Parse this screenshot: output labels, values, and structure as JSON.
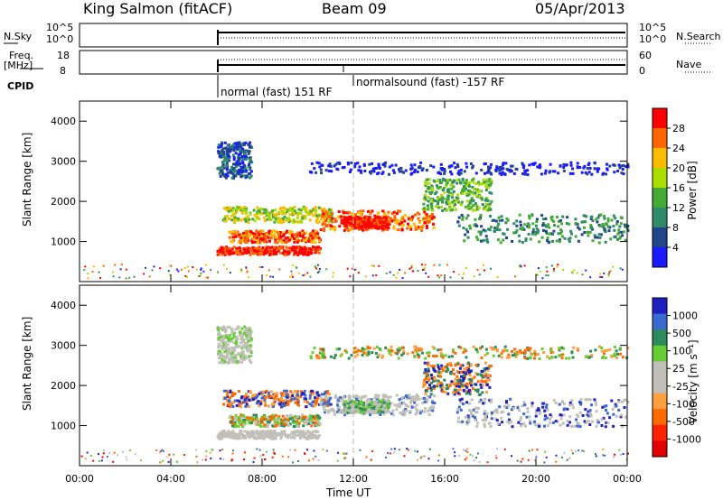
{
  "header": {
    "station": "King Salmon (fitACF)",
    "beam": "Beam 09",
    "date": "05/Apr/2013"
  },
  "small_panels": {
    "nsky_label": "N.Sky",
    "nsky_ticks": [
      "10^5",
      "10^0"
    ],
    "nsearch_label": "N.Search",
    "nsearch_ticks": [
      "10^5",
      "10^0"
    ],
    "freq_label_1": "Freq.",
    "freq_label_2": "[MHz]",
    "freq_ticks": [
      "18",
      "8"
    ],
    "nave_label": "Nave",
    "nave_ticks": [
      "60",
      "0"
    ],
    "cpid_label": "CPID",
    "cpid_segments": [
      "normal (fast) 151 RF",
      "normalsound (fast) -157 RF"
    ]
  },
  "chart_data": [
    {
      "type": "heatmap",
      "title": "",
      "xlabel": "Time UT",
      "ylabel": "Slant Range [km]",
      "x_ticks": [
        "00:00",
        "04:00",
        "08:00",
        "12:00",
        "16:00",
        "20:00",
        "00:00"
      ],
      "y_ticks": [
        1000,
        2000,
        3000,
        4000
      ],
      "ylim": [
        0,
        4500
      ],
      "xlim_hours": [
        0,
        24
      ],
      "colorbar_label": "Power [dB]",
      "colorbar_ticks": [
        "28",
        "24",
        "20",
        "16",
        "12",
        "8",
        "4"
      ],
      "colors": [
        "#ff0000",
        "#ff6600",
        "#ffbb00",
        "#aadd00",
        "#44aa33",
        "#2f8a6a",
        "#224488",
        "#1a1aff"
      ]
    },
    {
      "type": "heatmap",
      "title": "",
      "xlabel": "Time UT",
      "ylabel": "Slant Range [km]",
      "x_ticks": [
        "00:00",
        "04:00",
        "08:00",
        "12:00",
        "16:00",
        "20:00",
        "00:00"
      ],
      "y_ticks": [
        1000,
        2000,
        3000,
        4000
      ],
      "ylim": [
        0,
        4500
      ],
      "xlim_hours": [
        0,
        24
      ],
      "colorbar_label": "Velocity [m s⁻¹]",
      "colorbar_ticks": [
        "1000",
        "500",
        "100",
        "25",
        "-25",
        "-100",
        "-500",
        "-1000"
      ],
      "colors": [
        "#2020c0",
        "#3a6ad0",
        "#2d8a5a",
        "#66cc33",
        "#c0c0b8",
        "#c0c0b8",
        "#ffa040",
        "#ff6a00",
        "#ff2200",
        "#e00000"
      ]
    }
  ],
  "scatter_bands": [
    {
      "t0": 6.0,
      "t1": 10.5,
      "r0": 700,
      "r1": 900,
      "p": 0
    },
    {
      "t0": 6.5,
      "t1": 10.5,
      "r0": 1000,
      "r1": 1300,
      "p": 1
    },
    {
      "t0": 6.2,
      "t1": 11.0,
      "r0": 1500,
      "r1": 1900,
      "p": 3
    },
    {
      "t0": 10.5,
      "t1": 15.5,
      "r0": 1300,
      "r1": 1800,
      "p": 1
    },
    {
      "t0": 11.5,
      "t1": 13.5,
      "r0": 1350,
      "r1": 1650,
      "p": 0
    },
    {
      "t0": 15.0,
      "t1": 18.0,
      "r0": 1800,
      "r1": 2600,
      "p": 4
    },
    {
      "t0": 16.5,
      "t1": 24.0,
      "r0": 1000,
      "r1": 1700,
      "p": 5
    },
    {
      "t0": 6.0,
      "t1": 7.5,
      "r0": 2600,
      "r1": 3500,
      "p": 6
    },
    {
      "t0": 10.0,
      "t1": 24.0,
      "r0": 2700,
      "r1": 3000,
      "p": 7
    }
  ]
}
